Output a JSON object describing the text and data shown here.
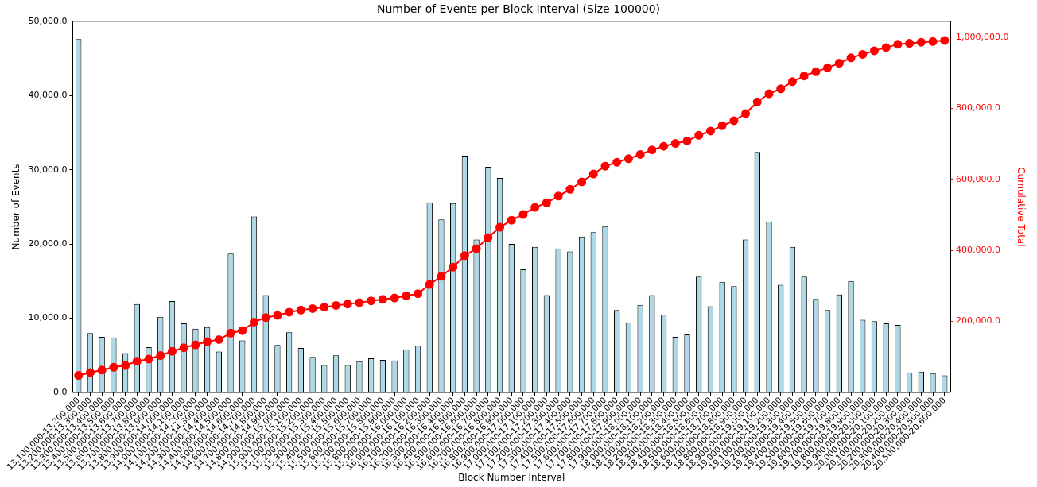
{
  "chart_data": {
    "type": "bar",
    "title": "Number of Events per Block Interval (Size 100000)",
    "xlabel": "Block Number Interval",
    "ylabel": "Number of Events",
    "y2label": "Cumulative Total",
    "categories": [
      "13,100,000-13,200,000",
      "13,200,000-13,300,000",
      "13,300,000-13,400,000",
      "13,400,000-13,500,000",
      "13,500,000-13,600,000",
      "13,600,000-13,700,000",
      "13,700,000-13,800,000",
      "13,800,000-13,900,000",
      "13,900,000-14,000,000",
      "14,000,000-14,100,000",
      "14,100,000-14,200,000",
      "14,200,000-14,300,000",
      "14,300,000-14,400,000",
      "14,400,000-14,500,000",
      "14,500,000-14,600,000",
      "14,600,000-14,700,000",
      "14,700,000-14,800,000",
      "14,800,000-14,900,000",
      "14,900,000-15,000,000",
      "15,000,000-15,100,000",
      "15,100,000-15,200,000",
      "15,200,000-15,300,000",
      "15,300,000-15,400,000",
      "15,400,000-15,500,000",
      "15,500,000-15,600,000",
      "15,600,000-15,700,000",
      "15,700,000-15,800,000",
      "15,800,000-15,900,000",
      "15,900,000-16,000,000",
      "16,000,000-16,100,000",
      "16,100,000-16,200,000",
      "16,200,000-16,300,000",
      "16,300,000-16,400,000",
      "16,400,000-16,500,000",
      "16,500,000-16,600,000",
      "16,600,000-16,700,000",
      "16,700,000-16,800,000",
      "16,800,000-16,900,000",
      "16,900,000-17,000,000",
      "17,000,000-17,100,000",
      "17,100,000-17,200,000",
      "17,200,000-17,300,000",
      "17,300,000-17,400,000",
      "17,400,000-17,500,000",
      "17,500,000-17,600,000",
      "17,600,000-17,700,000",
      "17,700,000-17,800,000",
      "17,800,000-17,900,000",
      "17,900,000-18,000,000",
      "18,000,000-18,100,000",
      "18,100,000-18,200,000",
      "18,200,000-18,300,000",
      "18,300,000-18,400,000",
      "18,400,000-18,500,000",
      "18,500,000-18,600,000",
      "18,600,000-18,700,000",
      "18,700,000-18,800,000",
      "18,800,000-18,900,000",
      "18,900,000-19,000,000",
      "19,000,000-19,100,000",
      "19,100,000-19,200,000",
      "19,200,000-19,300,000",
      "19,300,000-19,400,000",
      "19,400,000-19,500,000",
      "19,500,000-19,600,000",
      "19,600,000-19,700,000",
      "19,700,000-19,800,000",
      "19,800,000-19,900,000",
      "19,900,000-20,000,000",
      "20,000,000-20,100,000",
      "20,100,000-20,200,000",
      "20,200,000-20,300,000",
      "20,300,000-20,400,000",
      "20,400,000-20,500,000",
      "20,500,000-20,600,000"
    ],
    "series": [
      {
        "color": "#add8e6",
        "values": [
          47600,
          8000,
          7500,
          7400,
          5300,
          11900,
          6100,
          10200,
          12300,
          9300,
          8600,
          8800,
          5500,
          18700,
          7000,
          23700,
          13100,
          6400,
          8100,
          6000,
          4800,
          3700,
          5000,
          3700,
          4200,
          4600,
          4400,
          4300,
          5800,
          6300,
          25600,
          23300,
          25500,
          31900,
          20600,
          30400,
          28900,
          20000,
          16600,
          19600,
          13100,
          19400,
          19000,
          21000,
          21600,
          22400,
          11100,
          9400,
          11800,
          13100,
          10500,
          7500,
          7800,
          15600,
          11600,
          14900,
          14300,
          20600,
          32400,
          23000,
          14500,
          19600,
          15600,
          12600,
          11100,
          13200,
          15000,
          9800,
          9600,
          9300,
          9100,
          2700,
          2800,
          2600,
          2300
        ]
      },
      {
        "type": "line",
        "axis": "y2",
        "color": "#ff0000",
        "marker": "circle",
        "values": [
          48000,
          56000,
          63000,
          71000,
          76000,
          88000,
          94000,
          104000,
          116000,
          126000,
          134000,
          143000,
          149000,
          167000,
          174000,
          198000,
          211000,
          217000,
          226000,
          232000,
          236000,
          240000,
          245000,
          249000,
          253000,
          258000,
          262000,
          266000,
          272000,
          278000,
          304000,
          327000,
          353000,
          385000,
          405000,
          436000,
          465000,
          485000,
          501000,
          521000,
          534000,
          553000,
          572000,
          593000,
          615000,
          637000,
          648000,
          658000,
          670000,
          683000,
          693000,
          701000,
          708000,
          724000,
          736000,
          751000,
          765000,
          785000,
          818000,
          841000,
          855000,
          875000,
          891000,
          903000,
          914000,
          927000,
          942000,
          952000,
          962000,
          971000,
          980000,
          983000,
          986000,
          988000,
          991000
        ]
      }
    ],
    "ylim": [
      0,
      50000
    ],
    "yticks": [
      {
        "value": 0,
        "label": "0.0"
      },
      {
        "value": 10000,
        "label": "10,000.0"
      },
      {
        "value": 20000,
        "label": "20,000.0"
      },
      {
        "value": 30000,
        "label": "30,000.0"
      },
      {
        "value": 40000,
        "label": "40,000.0"
      },
      {
        "value": 50000,
        "label": "50,000.0"
      }
    ],
    "y2lim": [
      0,
      1045000
    ],
    "y2ticks": [
      {
        "value": 200000,
        "label": "200,000.0"
      },
      {
        "value": 400000,
        "label": "400,000.0"
      },
      {
        "value": 600000,
        "label": "600,000.0"
      },
      {
        "value": 800000,
        "label": "800,000.0"
      },
      {
        "value": 1000000,
        "label": "1,000,000.0"
      }
    ]
  }
}
